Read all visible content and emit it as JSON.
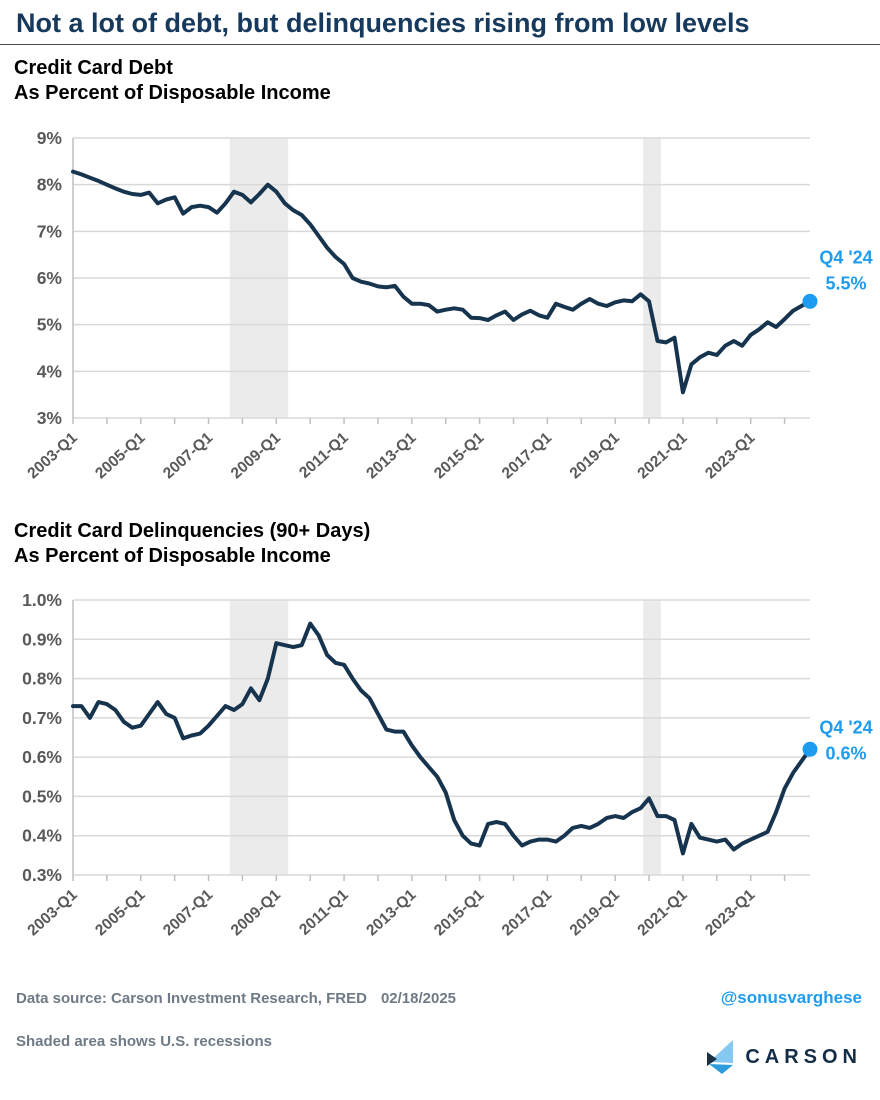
{
  "header": {
    "title": "Not a lot of debt, but delinquencies rising from low levels"
  },
  "colors": {
    "title_navy": "#16395C",
    "line_navy": "#17344E",
    "accent_blue": "#1E9CEF",
    "axis_label_gray": "#595959",
    "grid_gray": "#D9D9D9",
    "axis_line_gray": "#BFBFBF",
    "recession_band_gray": "#EBEBEB",
    "footer_gray": "#6E7A86",
    "brand_navy": "#152E47",
    "brand_light_blue": "#85C8F2",
    "brand_mid_blue": "#2D9CDB"
  },
  "footer": {
    "source_label": "Data source: Carson Investment Research, FRED",
    "source_date": "02/18/2025",
    "handle": "@sonusvarghese",
    "note": "Shaded area shows U.S. recessions",
    "brand": "CARSON"
  },
  "chart_data": [
    {
      "type": "line",
      "title": "Credit Card Debt",
      "subtitle": "As Percent of Disposable Income",
      "x_quarters_start": "2003-Q1",
      "x_quarters_end": "2024-Q4",
      "x_tick_labels": [
        "2003-Q1",
        "2005-Q1",
        "2007-Q1",
        "2009-Q1",
        "2011-Q1",
        "2013-Q1",
        "2015-Q1",
        "2017-Q1",
        "2019-Q1",
        "2021-Q1",
        "2023-Q1"
      ],
      "x_label_every_quarters": 8,
      "x_minor_tick_every_quarters": 4,
      "ylim": [
        3,
        9
      ],
      "y_ticks": [
        {
          "value": 9,
          "label": "9%"
        },
        {
          "value": 8,
          "label": "8%"
        },
        {
          "value": 7,
          "label": "7%"
        },
        {
          "value": 6,
          "label": "6%"
        },
        {
          "value": 5,
          "label": "5%"
        },
        {
          "value": 4,
          "label": "4%"
        },
        {
          "value": 3,
          "label": "3%"
        }
      ],
      "grid": true,
      "legend": "none",
      "recession_bands_quarter_index": [
        [
          18.5,
          25.4
        ],
        [
          67.3,
          69.4
        ]
      ],
      "series": [
        {
          "name": "Credit card debt as percent of disposable income",
          "values": [
            8.28,
            8.22,
            8.15,
            8.08,
            8.0,
            7.92,
            7.85,
            7.8,
            7.78,
            7.83,
            7.6,
            7.68,
            7.73,
            7.38,
            7.52,
            7.55,
            7.52,
            7.4,
            7.6,
            7.85,
            7.78,
            7.62,
            7.8,
            8.0,
            7.85,
            7.6,
            7.45,
            7.35,
            7.15,
            6.9,
            6.65,
            6.45,
            6.3,
            6.0,
            5.92,
            5.88,
            5.82,
            5.8,
            5.83,
            5.6,
            5.45,
            5.45,
            5.42,
            5.28,
            5.32,
            5.35,
            5.32,
            5.15,
            5.14,
            5.1,
            5.2,
            5.28,
            5.1,
            5.22,
            5.3,
            5.2,
            5.15,
            5.45,
            5.38,
            5.32,
            5.45,
            5.55,
            5.45,
            5.4,
            5.48,
            5.52,
            5.5,
            5.65,
            5.5,
            4.65,
            4.62,
            4.72,
            3.55,
            4.15,
            4.3,
            4.4,
            4.35,
            4.55,
            4.65,
            4.55,
            4.78,
            4.9,
            5.05,
            4.95,
            5.12,
            5.3,
            5.4,
            5.5
          ]
        }
      ],
      "end_point": {
        "quarter": "2024-Q4",
        "value": 5.5,
        "label_line1": "Q4 '24",
        "label_line2": "5.5%"
      }
    },
    {
      "type": "line",
      "title": "Credit Card Delinquencies (90+ Days)",
      "subtitle": "As Percent of Disposable Income",
      "x_quarters_start": "2003-Q1",
      "x_quarters_end": "2024-Q4",
      "x_tick_labels": [
        "2003-Q1",
        "2005-Q1",
        "2007-Q1",
        "2009-Q1",
        "2011-Q1",
        "2013-Q1",
        "2015-Q1",
        "2017-Q1",
        "2019-Q1",
        "2021-Q1",
        "2023-Q1"
      ],
      "x_label_every_quarters": 8,
      "x_minor_tick_every_quarters": 4,
      "ylim": [
        0.3,
        1.0
      ],
      "y_ticks": [
        {
          "value": 1.0,
          "label": "1.0%"
        },
        {
          "value": 0.9,
          "label": "0.9%"
        },
        {
          "value": 0.8,
          "label": "0.8%"
        },
        {
          "value": 0.7,
          "label": "0.7%"
        },
        {
          "value": 0.6,
          "label": "0.6%"
        },
        {
          "value": 0.5,
          "label": "0.5%"
        },
        {
          "value": 0.4,
          "label": "0.4%"
        },
        {
          "value": 0.3,
          "label": "0.3%"
        }
      ],
      "grid": true,
      "legend": "none",
      "recession_bands_quarter_index": [
        [
          18.5,
          25.4
        ],
        [
          67.3,
          69.4
        ]
      ],
      "series": [
        {
          "name": "Credit card delinquencies 90+ days as percent of disposable income",
          "values": [
            0.73,
            0.73,
            0.7,
            0.74,
            0.735,
            0.72,
            0.69,
            0.675,
            0.68,
            0.71,
            0.74,
            0.71,
            0.7,
            0.648,
            0.655,
            0.66,
            0.68,
            0.705,
            0.73,
            0.72,
            0.735,
            0.775,
            0.745,
            0.8,
            0.89,
            0.885,
            0.88,
            0.885,
            0.94,
            0.91,
            0.86,
            0.84,
            0.835,
            0.8,
            0.77,
            0.75,
            0.71,
            0.67,
            0.665,
            0.665,
            0.63,
            0.6,
            0.575,
            0.55,
            0.51,
            0.44,
            0.4,
            0.38,
            0.375,
            0.43,
            0.435,
            0.43,
            0.4,
            0.375,
            0.385,
            0.39,
            0.39,
            0.385,
            0.4,
            0.42,
            0.425,
            0.42,
            0.43,
            0.445,
            0.45,
            0.445,
            0.46,
            0.47,
            0.495,
            0.45,
            0.45,
            0.44,
            0.355,
            0.43,
            0.395,
            0.39,
            0.385,
            0.39,
            0.365,
            0.38,
            0.39,
            0.4,
            0.41,
            0.46,
            0.52,
            0.56,
            0.59,
            0.62
          ]
        }
      ],
      "end_point": {
        "quarter": "2024-Q4",
        "value": 0.62,
        "label_line1": "Q4 '24",
        "label_line2": "0.6%"
      }
    }
  ]
}
